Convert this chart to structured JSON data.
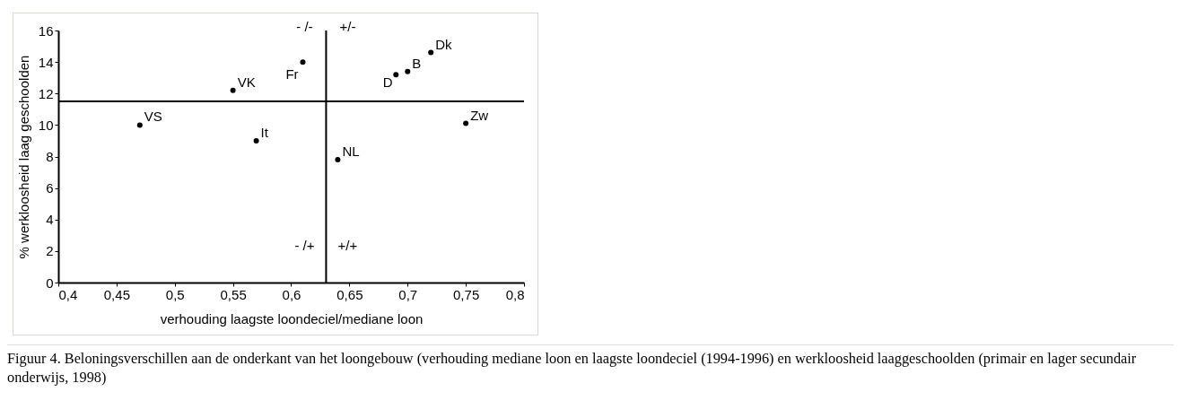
{
  "chart_data": {
    "type": "scatter",
    "xlabel": "verhouding laagste loondeciel/mediane loon",
    "ylabel": "% werkloosheid laag geschoolden",
    "xlim": [
      0.4,
      0.8
    ],
    "ylim": [
      0,
      16
    ],
    "xticks": [
      {
        "value": 0.4,
        "label": "0,4"
      },
      {
        "value": 0.45,
        "label": "0,45"
      },
      {
        "value": 0.5,
        "label": "0,5"
      },
      {
        "value": 0.55,
        "label": "0,55"
      },
      {
        "value": 0.6,
        "label": "0,6"
      },
      {
        "value": 0.65,
        "label": "0,65"
      },
      {
        "value": 0.7,
        "label": "0,7"
      },
      {
        "value": 0.75,
        "label": "0,75"
      },
      {
        "value": 0.8,
        "label": "0,8"
      }
    ],
    "yticks": [
      0,
      2,
      4,
      6,
      8,
      10,
      12,
      14,
      16
    ],
    "series": [
      {
        "name": "VS",
        "color": "#000000",
        "x": [
          0.47
        ],
        "values": [
          10.0
        ]
      },
      {
        "name": "VK",
        "color": "#000000",
        "x": [
          0.55
        ],
        "values": [
          12.2
        ]
      },
      {
        "name": "It",
        "color": "#000000",
        "x": [
          0.57
        ],
        "values": [
          9.0
        ]
      },
      {
        "name": "Fr",
        "color": "#000000",
        "x": [
          0.61
        ],
        "values": [
          14.0
        ]
      },
      {
        "name": "NL",
        "color": "#000000",
        "x": [
          0.64
        ],
        "values": [
          7.8
        ]
      },
      {
        "name": "D",
        "color": "#000000",
        "x": [
          0.69
        ],
        "values": [
          13.2
        ]
      },
      {
        "name": "B",
        "color": "#000000",
        "x": [
          0.7
        ],
        "values": [
          13.4
        ]
      },
      {
        "name": "Dk",
        "color": "#000000",
        "x": [
          0.72
        ],
        "values": [
          14.6
        ]
      },
      {
        "name": "Zw",
        "color": "#000000",
        "x": [
          0.75
        ],
        "values": [
          10.1
        ]
      }
    ],
    "ref_lines": [
      {
        "axis": "x",
        "value": 0.63,
        "color": "#000000"
      },
      {
        "axis": "y",
        "value": 11.5,
        "color": "#000000"
      }
    ],
    "annotations": [
      "- /-",
      "+/-",
      "- /+",
      "+/+",
      "Figuur 4. Beloningsverschillen aan de onderkant van het loongebouw (verhouding mediane loon en laagste loondeciel (1994-1996) en werkloosheid laaggeschoolden (primair en lager secundair onderwijs, 1998)"
    ],
    "marker": "circle",
    "grid": false,
    "legend": false
  }
}
